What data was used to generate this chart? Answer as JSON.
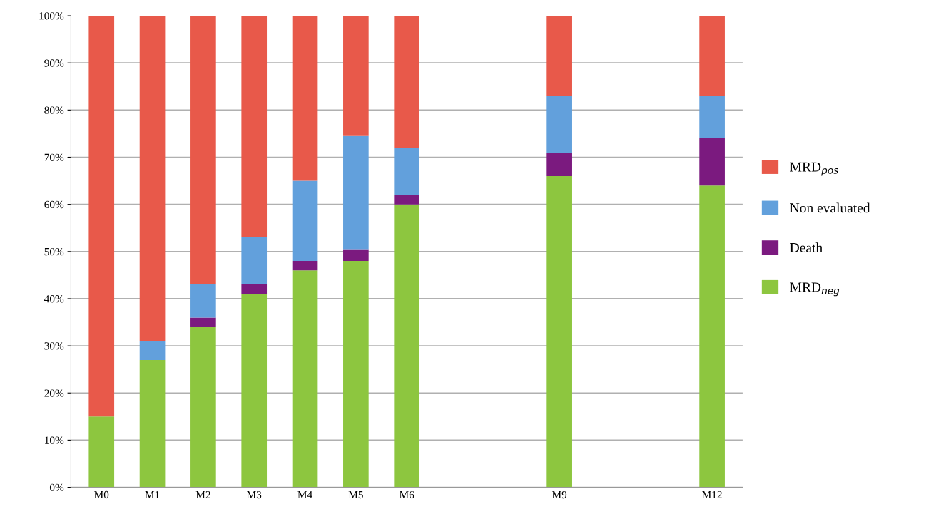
{
  "chart_data": {
    "type": "bar",
    "stacked": true,
    "categories": [
      "M0",
      "M1",
      "M2",
      "M3",
      "M4",
      "M5",
      "M6",
      null,
      null,
      "M9",
      null,
      null,
      "M12"
    ],
    "series": [
      {
        "name": "MRD$_{neg}$",
        "color": "#8dc63f",
        "values": [
          15,
          27,
          34,
          41,
          46,
          48,
          60,
          null,
          null,
          66,
          null,
          null,
          64
        ]
      },
      {
        "name": "Death",
        "color": "#7b1a7f",
        "values": [
          0,
          0,
          2,
          2,
          2,
          2.5,
          2,
          null,
          null,
          5,
          null,
          null,
          10
        ]
      },
      {
        "name": "Non evaluated",
        "color": "#62a0dc",
        "values": [
          0,
          4,
          7,
          10,
          17,
          24,
          10,
          null,
          null,
          12,
          null,
          null,
          9
        ]
      },
      {
        "name": "MRD$_{pos}$",
        "color": "#e8594a",
        "values": [
          85,
          69,
          57,
          47,
          35,
          25.5,
          28,
          null,
          null,
          17,
          null,
          null,
          17
        ]
      }
    ],
    "ylim": [
      0,
      100
    ],
    "yticks": [
      {
        "value": 0,
        "label": "0%"
      },
      {
        "value": 10,
        "label": "10%"
      },
      {
        "value": 20,
        "label": "20%"
      },
      {
        "value": 30,
        "label": "30%"
      },
      {
        "value": 40,
        "label": "40%"
      },
      {
        "value": 50,
        "label": "50%"
      },
      {
        "value": 60,
        "label": "60%"
      },
      {
        "value": 70,
        "label": "70%"
      },
      {
        "value": 80,
        "label": "80%"
      },
      {
        "value": 90,
        "label": "90%"
      },
      {
        "value": 100,
        "label": "100%"
      }
    ],
    "grid": "y",
    "legend": "right"
  }
}
